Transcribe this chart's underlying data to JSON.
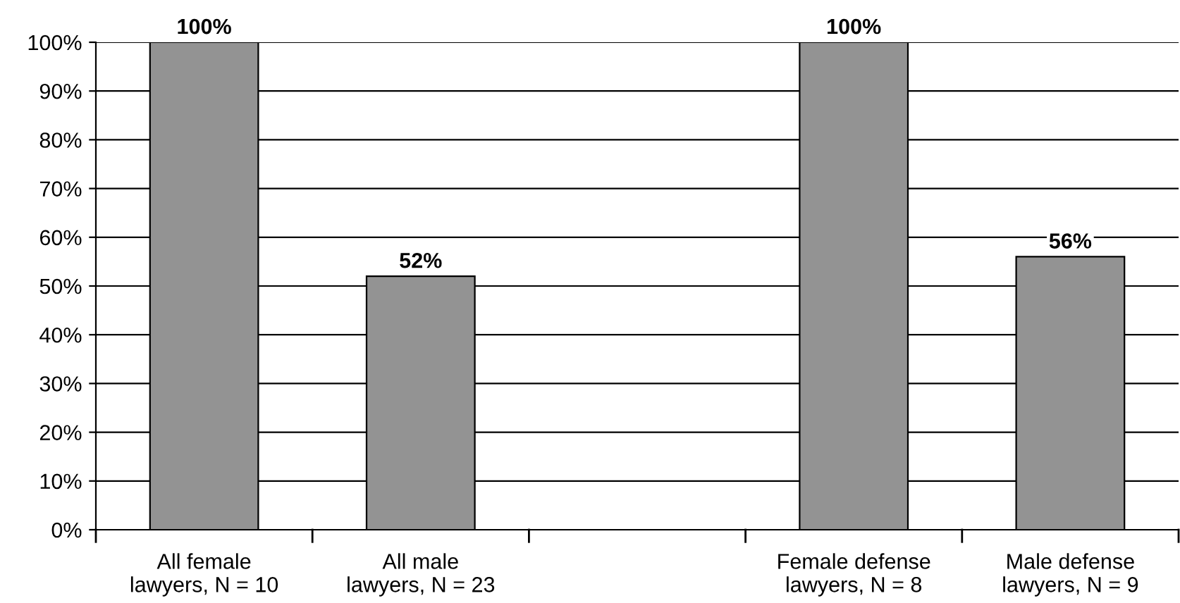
{
  "chart_data": {
    "type": "bar",
    "categories": [
      "All female\nlawyers, N = 10",
      "All male\nlawyers, N = 23",
      null,
      "Female defense\nlawyers, N = 8",
      "Male defense\nlawyers, N = 9"
    ],
    "values": [
      100,
      52,
      null,
      100,
      56
    ],
    "color": "#939393",
    "value_labels": [
      "100%",
      "52%",
      null,
      "100%",
      "56%"
    ],
    "ylim": [
      0,
      100
    ],
    "yticks": [
      {
        "value": 0,
        "label": "0%"
      },
      {
        "value": 10,
        "label": "10%"
      },
      {
        "value": 20,
        "label": "20%"
      },
      {
        "value": 30,
        "label": "30%"
      },
      {
        "value": 40,
        "label": "40%"
      },
      {
        "value": 50,
        "label": "50%"
      },
      {
        "value": 60,
        "label": "60%"
      },
      {
        "value": 70,
        "label": "70%"
      },
      {
        "value": 80,
        "label": "80%"
      },
      {
        "value": 90,
        "label": "90%"
      },
      {
        "value": 100,
        "label": "100%"
      }
    ],
    "grid": "y",
    "legend": false
  }
}
